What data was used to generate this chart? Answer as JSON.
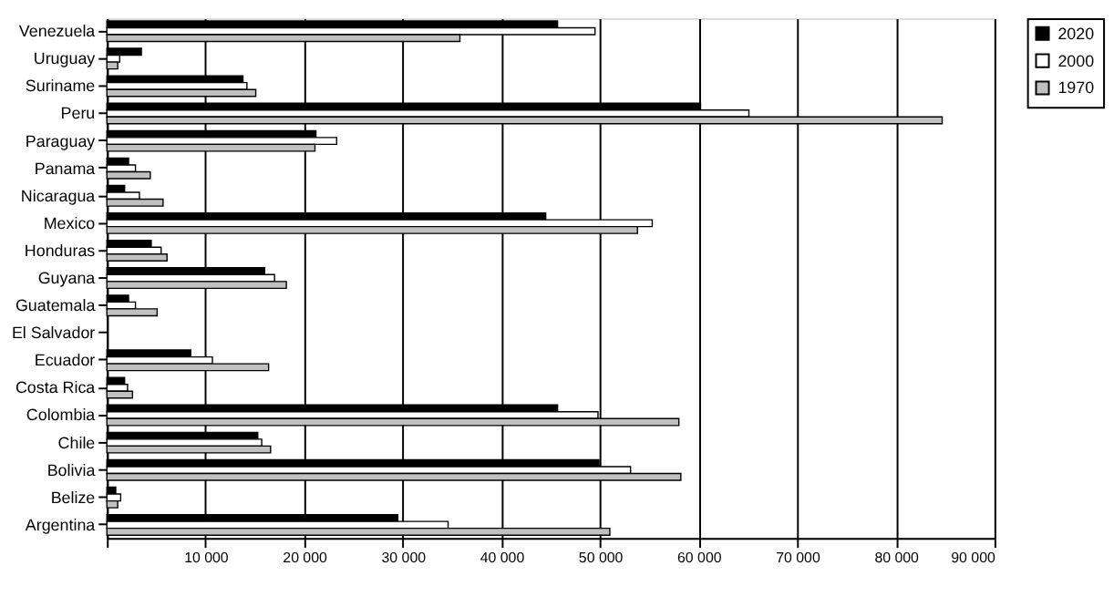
{
  "chart_data": {
    "type": "bar",
    "orientation": "horizontal",
    "categories": [
      "Venezuela",
      "Uruguay",
      "Suriname",
      "Peru",
      "Paraguay",
      "Panama",
      "Nicaragua",
      "Mexico",
      "Honduras",
      "Guyana",
      "Guatemala",
      "El Salvador",
      "Ecuador",
      "Costa Rica",
      "Colombia",
      "Chile",
      "Bolivia",
      "Belize",
      "Argentina"
    ],
    "series": [
      {
        "name": "2020",
        "color": "#000000",
        "values": [
          45700,
          3500,
          13800,
          60200,
          21200,
          2200,
          1800,
          44500,
          4500,
          16000,
          2200,
          null,
          8500,
          1800,
          45700,
          15300,
          49900,
          900,
          29500
        ]
      },
      {
        "name": "2000",
        "color": "#ffffff",
        "values": [
          49500,
          1300,
          14200,
          65100,
          23300,
          2900,
          3300,
          55300,
          5500,
          17000,
          2900,
          null,
          10700,
          2100,
          49800,
          15700,
          53100,
          1400,
          34600
        ]
      },
      {
        "name": "1970",
        "color": "#c0c0c0",
        "values": [
          35800,
          1100,
          15100,
          84700,
          21100,
          4400,
          5700,
          53800,
          6100,
          18200,
          5100,
          null,
          16400,
          2600,
          58000,
          16600,
          58200,
          1100,
          51000
        ]
      }
    ],
    "xlim": [
      0,
      90000
    ],
    "xticks": [
      {
        "value": 0,
        "label": null
      },
      {
        "value": 10000,
        "label": "10 000"
      },
      {
        "value": 20000,
        "label": "20 000"
      },
      {
        "value": 30000,
        "label": "30 000"
      },
      {
        "value": 40000,
        "label": "40 000"
      },
      {
        "value": 50000,
        "label": "50 000"
      },
      {
        "value": 60000,
        "label": "60 000"
      },
      {
        "value": 70000,
        "label": "70 000"
      },
      {
        "value": 80000,
        "label": "80 000"
      },
      {
        "value": 90000,
        "label": "90 000"
      }
    ],
    "grid": "x",
    "legend": "right"
  }
}
